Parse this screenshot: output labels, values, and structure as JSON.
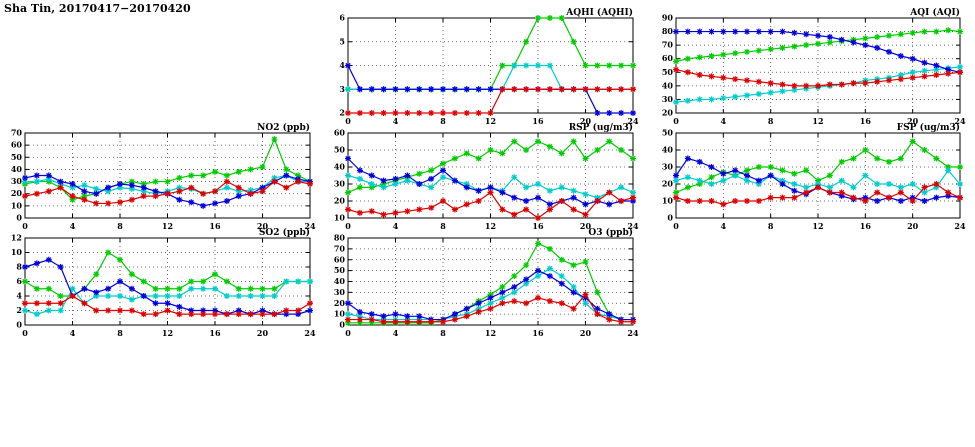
{
  "header": {
    "title": "Sha Tin, 20170417−20170420"
  },
  "palette": {
    "blue": "#0000dd",
    "cyan": "#00cccc",
    "green": "#00cc00",
    "red": "#dd0000"
  },
  "chart_data": [
    {
      "id": "aqhi",
      "type": "line",
      "title": "AQHI (AQHI)",
      "xlabel": "",
      "ylabel": "",
      "xlim": [
        0,
        24
      ],
      "xticks": [
        0,
        4,
        8,
        12,
        16,
        20,
        24
      ],
      "ylim": [
        2,
        6
      ],
      "yticks": [
        2,
        3,
        4,
        5,
        6
      ],
      "grid": true,
      "legend": "none",
      "x": [
        0,
        1,
        2,
        3,
        4,
        5,
        6,
        7,
        8,
        9,
        10,
        11,
        12,
        13,
        14,
        15,
        16,
        17,
        18,
        19,
        20,
        21,
        22,
        23,
        24
      ],
      "series": [
        {
          "name": "green",
          "color": "#00cc00",
          "values": [
            3,
            3,
            3,
            3,
            3,
            3,
            3,
            3,
            3,
            3,
            3,
            3,
            3,
            4,
            4,
            5,
            6,
            6,
            6,
            5,
            4,
            4,
            4,
            4,
            4
          ]
        },
        {
          "name": "cyan",
          "color": "#00cccc",
          "values": [
            3,
            3,
            3,
            3,
            3,
            3,
            3,
            3,
            3,
            3,
            3,
            3,
            3,
            3,
            4,
            4,
            4,
            4,
            3,
            3,
            3,
            3,
            3,
            3,
            3
          ]
        },
        {
          "name": "blue",
          "color": "#0000dd",
          "values": [
            4,
            3,
            3,
            3,
            3,
            3,
            3,
            3,
            3,
            3,
            3,
            3,
            3,
            3,
            3,
            3,
            3,
            3,
            3,
            3,
            3,
            2,
            2,
            2,
            2
          ]
        },
        {
          "name": "red",
          "color": "#dd0000",
          "values": [
            2,
            2,
            2,
            2,
            2,
            2,
            2,
            2,
            2,
            2,
            2,
            2,
            2,
            3,
            3,
            3,
            3,
            3,
            3,
            3,
            3,
            3,
            3,
            3,
            3
          ]
        }
      ]
    },
    {
      "id": "aqi",
      "type": "line",
      "title": "AQI (AQI)",
      "xlabel": "",
      "ylabel": "",
      "xlim": [
        0,
        24
      ],
      "xticks": [
        0,
        4,
        8,
        12,
        16,
        20,
        24
      ],
      "ylim": [
        20,
        90
      ],
      "yticks": [
        20,
        30,
        40,
        50,
        60,
        70,
        80,
        90
      ],
      "grid": true,
      "legend": "none",
      "x": [
        0,
        1,
        2,
        3,
        4,
        5,
        6,
        7,
        8,
        9,
        10,
        11,
        12,
        13,
        14,
        15,
        16,
        17,
        18,
        19,
        20,
        21,
        22,
        23,
        24
      ],
      "series": [
        {
          "name": "green",
          "color": "#00cc00",
          "values": [
            58,
            60,
            61,
            62,
            63,
            64,
            65,
            66,
            67,
            68,
            69,
            70,
            71,
            72,
            73,
            74,
            75,
            76,
            77,
            78,
            79,
            80,
            80,
            81,
            80
          ]
        },
        {
          "name": "cyan",
          "color": "#00cccc",
          "values": [
            28,
            29,
            30,
            30,
            31,
            32,
            33,
            34,
            35,
            36,
            37,
            38,
            39,
            40,
            41,
            42,
            44,
            45,
            46,
            48,
            50,
            51,
            52,
            53,
            54
          ]
        },
        {
          "name": "blue",
          "color": "#0000dd",
          "values": [
            80,
            80,
            80,
            80,
            80,
            80,
            80,
            80,
            80,
            80,
            79,
            78,
            77,
            76,
            74,
            72,
            70,
            68,
            65,
            62,
            60,
            57,
            55,
            52,
            50
          ]
        },
        {
          "name": "red",
          "color": "#dd0000",
          "values": [
            52,
            50,
            48,
            47,
            46,
            45,
            44,
            43,
            42,
            41,
            40,
            40,
            40,
            41,
            41,
            42,
            42,
            43,
            44,
            45,
            46,
            47,
            48,
            49,
            50
          ]
        }
      ]
    },
    {
      "id": "no2",
      "type": "line",
      "title": "NO2 (ppb)",
      "xlabel": "",
      "ylabel": "",
      "xlim": [
        0,
        24
      ],
      "xticks": [
        0,
        4,
        8,
        12,
        16,
        20,
        24
      ],
      "ylim": [
        0,
        70
      ],
      "yticks": [
        0,
        10,
        20,
        30,
        40,
        50,
        60,
        70
      ],
      "grid": true,
      "legend": "none",
      "x": [
        0,
        1,
        2,
        3,
        4,
        5,
        6,
        7,
        8,
        9,
        10,
        11,
        12,
        13,
        14,
        15,
        16,
        17,
        18,
        19,
        20,
        21,
        22,
        23,
        24
      ],
      "series": [
        {
          "name": "green",
          "color": "#00cc00",
          "values": [
            28,
            30,
            30,
            25,
            15,
            18,
            20,
            25,
            28,
            30,
            28,
            30,
            30,
            33,
            35,
            35,
            38,
            35,
            38,
            40,
            42,
            65,
            40,
            35,
            30
          ]
        },
        {
          "name": "cyan",
          "color": "#00cccc",
          "values": [
            30,
            30,
            32,
            28,
            25,
            27,
            24,
            22,
            25,
            24,
            22,
            20,
            22,
            25,
            24,
            20,
            22,
            25,
            22,
            23,
            25,
            33,
            35,
            30,
            30
          ]
        },
        {
          "name": "blue",
          "color": "#0000dd",
          "values": [
            33,
            35,
            35,
            30,
            28,
            22,
            20,
            25,
            28,
            27,
            25,
            22,
            20,
            15,
            13,
            10,
            12,
            14,
            18,
            20,
            25,
            30,
            35,
            32,
            30
          ]
        },
        {
          "name": "red",
          "color": "#dd0000",
          "values": [
            18,
            20,
            22,
            25,
            18,
            15,
            12,
            12,
            13,
            15,
            18,
            18,
            20,
            22,
            25,
            20,
            22,
            30,
            25,
            20,
            22,
            30,
            25,
            30,
            28
          ]
        }
      ]
    },
    {
      "id": "rsp",
      "type": "line",
      "title": "RSP (ug/m3)",
      "xlabel": "",
      "ylabel": "",
      "xlim": [
        0,
        24
      ],
      "xticks": [
        0,
        4,
        8,
        12,
        16,
        20,
        24
      ],
      "ylim": [
        10,
        60
      ],
      "yticks": [
        10,
        20,
        30,
        40,
        50,
        60
      ],
      "grid": true,
      "legend": "none",
      "x": [
        0,
        1,
        2,
        3,
        4,
        5,
        6,
        7,
        8,
        9,
        10,
        11,
        12,
        13,
        14,
        15,
        16,
        17,
        18,
        19,
        20,
        21,
        22,
        23,
        24
      ],
      "series": [
        {
          "name": "green",
          "color": "#00cc00",
          "values": [
            25,
            28,
            28,
            30,
            32,
            34,
            36,
            38,
            42,
            45,
            48,
            45,
            50,
            48,
            55,
            50,
            55,
            52,
            48,
            55,
            45,
            50,
            55,
            50,
            45
          ]
        },
        {
          "name": "cyan",
          "color": "#00cccc",
          "values": [
            35,
            33,
            30,
            28,
            30,
            32,
            30,
            28,
            34,
            32,
            30,
            26,
            28,
            26,
            34,
            28,
            30,
            26,
            28,
            26,
            24,
            22,
            25,
            28,
            25
          ]
        },
        {
          "name": "blue",
          "color": "#0000dd",
          "values": [
            45,
            38,
            35,
            32,
            33,
            35,
            30,
            33,
            38,
            32,
            28,
            26,
            28,
            25,
            22,
            20,
            22,
            18,
            20,
            22,
            18,
            20,
            18,
            20,
            20
          ]
        },
        {
          "name": "red",
          "color": "#dd0000",
          "values": [
            15,
            13,
            14,
            12,
            13,
            14,
            15,
            16,
            20,
            15,
            18,
            20,
            25,
            15,
            12,
            15,
            10,
            15,
            20,
            15,
            12,
            20,
            25,
            20,
            22
          ]
        }
      ]
    },
    {
      "id": "fsp",
      "type": "line",
      "title": "FSP (ug/m3)",
      "xlabel": "",
      "ylabel": "",
      "xlim": [
        0,
        24
      ],
      "xticks": [
        0,
        4,
        8,
        12,
        16,
        20,
        24
      ],
      "ylim": [
        0,
        50
      ],
      "yticks": [
        0,
        10,
        20,
        30,
        40,
        50
      ],
      "grid": true,
      "legend": "none",
      "x": [
        0,
        1,
        2,
        3,
        4,
        5,
        6,
        7,
        8,
        9,
        10,
        11,
        12,
        13,
        14,
        15,
        16,
        17,
        18,
        19,
        20,
        21,
        22,
        23,
        24
      ],
      "series": [
        {
          "name": "green",
          "color": "#00cc00",
          "values": [
            15,
            18,
            20,
            24,
            27,
            25,
            28,
            30,
            30,
            28,
            26,
            28,
            22,
            25,
            33,
            35,
            40,
            35,
            33,
            35,
            45,
            40,
            35,
            30,
            30
          ]
        },
        {
          "name": "cyan",
          "color": "#00cccc",
          "values": [
            22,
            24,
            22,
            20,
            22,
            25,
            22,
            20,
            25,
            22,
            20,
            18,
            20,
            18,
            22,
            18,
            25,
            20,
            20,
            18,
            20,
            15,
            18,
            28,
            20
          ]
        },
        {
          "name": "blue",
          "color": "#0000dd",
          "values": [
            25,
            35,
            33,
            30,
            26,
            28,
            25,
            22,
            25,
            20,
            16,
            14,
            18,
            15,
            13,
            11,
            12,
            10,
            12,
            10,
            12,
            10,
            12,
            13,
            12
          ]
        },
        {
          "name": "red",
          "color": "#dd0000",
          "values": [
            12,
            10,
            10,
            10,
            8,
            10,
            10,
            10,
            12,
            12,
            12,
            15,
            18,
            15,
            15,
            12,
            10,
            15,
            12,
            15,
            10,
            18,
            20,
            15,
            12
          ]
        }
      ]
    },
    {
      "id": "so2",
      "type": "line",
      "title": "SO2 (ppb)",
      "xlabel": "",
      "ylabel": "",
      "xlim": [
        0,
        24
      ],
      "xticks": [
        0,
        4,
        8,
        12,
        16,
        20,
        24
      ],
      "ylim": [
        0,
        12
      ],
      "yticks": [
        0,
        2,
        4,
        6,
        8,
        10,
        12
      ],
      "grid": true,
      "legend": "none",
      "x": [
        0,
        1,
        2,
        3,
        4,
        5,
        6,
        7,
        8,
        9,
        10,
        11,
        12,
        13,
        14,
        15,
        16,
        17,
        18,
        19,
        20,
        21,
        22,
        23,
        24
      ],
      "series": [
        {
          "name": "green",
          "color": "#00cc00",
          "values": [
            6,
            5,
            5,
            4,
            4,
            5,
            7,
            10,
            9,
            7,
            6,
            5,
            5,
            5,
            6,
            6,
            7,
            6,
            5,
            5,
            5,
            5,
            6,
            6,
            6
          ]
        },
        {
          "name": "cyan",
          "color": "#00cccc",
          "values": [
            2,
            1.5,
            2,
            2,
            5,
            3,
            4,
            4,
            4,
            3.5,
            4,
            4,
            4,
            4,
            5,
            5,
            5,
            4,
            4,
            4,
            4,
            4,
            6,
            6,
            6
          ]
        },
        {
          "name": "blue",
          "color": "#0000dd",
          "values": [
            8,
            8.5,
            9,
            8,
            4,
            5,
            4.5,
            5,
            6,
            5,
            4,
            3,
            3,
            2.5,
            2,
            2,
            2,
            1.5,
            2,
            1.5,
            2,
            1.5,
            1.5,
            1.5,
            2
          ]
        },
        {
          "name": "red",
          "color": "#dd0000",
          "values": [
            3,
            3,
            3,
            3,
            4,
            3,
            2,
            2,
            2,
            2,
            1.5,
            1.5,
            2,
            1.5,
            1.5,
            1.5,
            1.5,
            1.5,
            1.5,
            1.5,
            1.5,
            1.5,
            2,
            2,
            3
          ]
        }
      ]
    },
    {
      "id": "o3",
      "type": "line",
      "title": "O3 (ppb)",
      "xlabel": "",
      "ylabel": "",
      "xlim": [
        0,
        24
      ],
      "xticks": [
        0,
        4,
        8,
        12,
        16,
        20,
        24
      ],
      "ylim": [
        0,
        80
      ],
      "yticks": [
        0,
        10,
        20,
        30,
        40,
        50,
        60,
        70,
        80
      ],
      "grid": true,
      "legend": "none",
      "x": [
        0,
        1,
        2,
        3,
        4,
        5,
        6,
        7,
        8,
        9,
        10,
        11,
        12,
        13,
        14,
        15,
        16,
        17,
        18,
        19,
        20,
        21,
        22,
        23,
        24
      ],
      "series": [
        {
          "name": "green",
          "color": "#00cc00",
          "values": [
            2,
            2,
            2,
            2,
            2,
            2,
            2,
            2,
            5,
            10,
            15,
            22,
            28,
            35,
            45,
            55,
            75,
            70,
            60,
            55,
            58,
            30,
            10,
            5,
            5
          ]
        },
        {
          "name": "cyan",
          "color": "#00cccc",
          "values": [
            10,
            8,
            5,
            5,
            5,
            5,
            5,
            5,
            5,
            8,
            10,
            15,
            20,
            25,
            30,
            38,
            45,
            52,
            45,
            35,
            20,
            10,
            8,
            5,
            5
          ]
        },
        {
          "name": "blue",
          "color": "#0000dd",
          "values": [
            20,
            12,
            10,
            8,
            10,
            8,
            8,
            5,
            5,
            10,
            15,
            20,
            25,
            30,
            35,
            42,
            50,
            45,
            38,
            30,
            25,
            15,
            10,
            5,
            5
          ]
        },
        {
          "name": "red",
          "color": "#dd0000",
          "values": [
            5,
            5,
            5,
            3,
            3,
            3,
            3,
            3,
            3,
            5,
            8,
            12,
            15,
            20,
            22,
            20,
            25,
            22,
            20,
            15,
            28,
            10,
            5,
            3,
            3
          ]
        }
      ]
    }
  ]
}
